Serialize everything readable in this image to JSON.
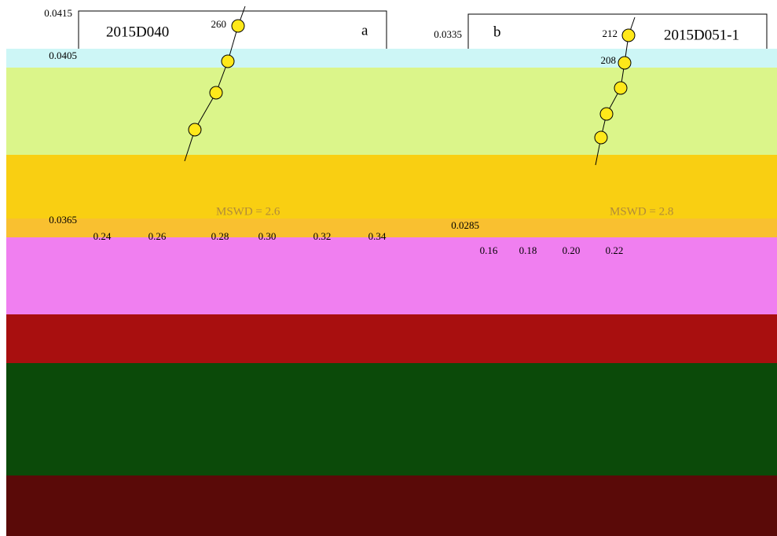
{
  "panels": [
    {
      "letter": "a",
      "sample": "2015D040",
      "age_labels": [
        "260"
      ],
      "yticks": [
        "0.0415",
        "0.0405",
        "0.0365"
      ],
      "xticks": [
        "0.24",
        "0.26",
        "0.28",
        "0.30",
        "0.32",
        "0.34"
      ],
      "mswd": "MSWD = 2.6"
    },
    {
      "letter": "b",
      "sample": "2015D051-1",
      "age_labels": [
        "212",
        "208"
      ],
      "yticks": [
        "0.0335",
        "0.0285"
      ],
      "xticks": [
        "0.16",
        "0.18",
        "0.20",
        "0.22"
      ],
      "mswd": "MSWD = 2.8"
    }
  ]
}
